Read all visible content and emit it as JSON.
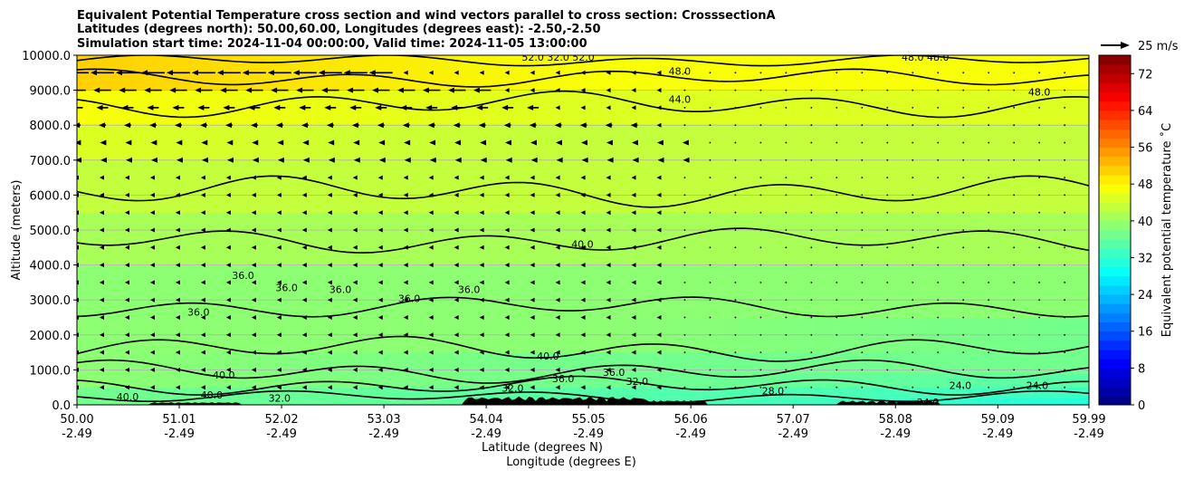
{
  "chart_data": {
    "type": "heatmap",
    "title_lines": [
      "Equivalent Potential Temperature cross section and wind vectors parallel to cross section: CrosssectionA",
      "Latitudes (degrees north): 50.00,60.00, Longitudes (degrees east): -2.50,-2.50",
      "Simulation start time: 2024-11-04 00:00:00, Valid time: 2024-11-05 13:00:00"
    ],
    "ylabel": "Altitude (meters)",
    "xlabel_lines": [
      "Latitude (degrees N)",
      "Longitude (degrees E)"
    ],
    "ylim": [
      0,
      10000
    ],
    "xlim": [
      50.0,
      59.99
    ],
    "yticks": [
      {
        "value": 0,
        "label": "0.0"
      },
      {
        "value": 1000,
        "label": "1000.0"
      },
      {
        "value": 2000,
        "label": "2000.0"
      },
      {
        "value": 3000,
        "label": "3000.0"
      },
      {
        "value": 4000,
        "label": "4000.0"
      },
      {
        "value": 5000,
        "label": "5000.0"
      },
      {
        "value": 6000,
        "label": "6000.0"
      },
      {
        "value": 7000,
        "label": "7000.0"
      },
      {
        "value": 8000,
        "label": "8000.0"
      },
      {
        "value": 9000,
        "label": "9000.0"
      },
      {
        "value": 10000,
        "label": "10000.0"
      }
    ],
    "xticks": [
      {
        "lat": 50.0,
        "lat_label": "50.00",
        "lon_label": "-2.49"
      },
      {
        "lat": 51.01,
        "lat_label": "51.01",
        "lon_label": "-2.49"
      },
      {
        "lat": 52.02,
        "lat_label": "52.02",
        "lon_label": "-2.49"
      },
      {
        "lat": 53.03,
        "lat_label": "53.03",
        "lon_label": "-2.49"
      },
      {
        "lat": 54.04,
        "lat_label": "54.04",
        "lon_label": "-2.49"
      },
      {
        "lat": 55.05,
        "lat_label": "55.05",
        "lon_label": "-2.49"
      },
      {
        "lat": 56.06,
        "lat_label": "56.06",
        "lon_label": "-2.49"
      },
      {
        "lat": 57.07,
        "lat_label": "57.07",
        "lon_label": "-2.49"
      },
      {
        "lat": 58.08,
        "lat_label": "58.08",
        "lon_label": "-2.49"
      },
      {
        "lat": 59.09,
        "lat_label": "59.09",
        "lon_label": "-2.49"
      },
      {
        "lat": 59.99,
        "lat_label": "59.99",
        "lon_label": "-2.49"
      }
    ],
    "grid_y": true,
    "colorbar": {
      "label": "Equivalent potential temperature $^\\circ$C",
      "label_text": "Equivalent potential temperature ˚C",
      "min": 0,
      "max": 76,
      "ticks": [
        0,
        8,
        16,
        24,
        32,
        40,
        48,
        56,
        64,
        72
      ],
      "colormap": "jet"
    },
    "quiver_key": {
      "label": "25 m/s",
      "speed": 25
    },
    "theta_e_bands": [
      {
        "z": 0,
        "left": 36,
        "mid": 35,
        "right": 30
      },
      {
        "z": 200,
        "left": 37,
        "mid": 35,
        "right": 32
      },
      {
        "z": 500,
        "left": 38,
        "mid": 36,
        "right": 33
      },
      {
        "z": 900,
        "left": 39,
        "mid": 37,
        "right": 35
      },
      {
        "z": 1500,
        "left": 40,
        "mid": 38,
        "right": 37
      },
      {
        "z": 2500,
        "left": 39,
        "mid": 38,
        "right": 38
      },
      {
        "z": 4000,
        "left": 40,
        "mid": 39,
        "right": 40
      },
      {
        "z": 5500,
        "left": 42,
        "mid": 41,
        "right": 42
      },
      {
        "z": 7000,
        "left": 44,
        "mid": 43,
        "right": 43
      },
      {
        "z": 8000,
        "left": 46,
        "mid": 44,
        "right": 44
      },
      {
        "z": 9000,
        "left": 48,
        "mid": 46,
        "right": 45
      },
      {
        "z": 10000,
        "left": 52,
        "mid": 49,
        "right": 47
      }
    ],
    "contour_labels": [
      {
        "text": "52.0",
        "lat": 54.5,
        "z": 9950
      },
      {
        "text": "32.0",
        "lat": 54.75,
        "z": 9950
      },
      {
        "text": "52.0",
        "lat": 55.0,
        "z": 9950
      },
      {
        "text": "48.0",
        "lat": 58.25,
        "z": 9950
      },
      {
        "text": "48.0",
        "lat": 58.5,
        "z": 9950
      },
      {
        "text": "48.0",
        "lat": 55.95,
        "z": 9550
      },
      {
        "text": "44.0",
        "lat": 55.95,
        "z": 8750
      },
      {
        "text": "48.0",
        "lat": 59.5,
        "z": 8950
      },
      {
        "text": "40.0",
        "lat": 54.99,
        "z": 4600
      },
      {
        "text": "36.0",
        "lat": 51.64,
        "z": 3700
      },
      {
        "text": "36.0",
        "lat": 52.07,
        "z": 3350
      },
      {
        "text": "36.0",
        "lat": 52.6,
        "z": 3300
      },
      {
        "text": "36.0",
        "lat": 53.28,
        "z": 3050
      },
      {
        "text": "36.0",
        "lat": 53.87,
        "z": 3300
      },
      {
        "text": "36.0",
        "lat": 51.2,
        "z": 2650
      },
      {
        "text": "40.0",
        "lat": 54.65,
        "z": 1400
      },
      {
        "text": "40.0",
        "lat": 51.45,
        "z": 850
      },
      {
        "text": "36.0",
        "lat": 54.8,
        "z": 750
      },
      {
        "text": "36.0",
        "lat": 55.3,
        "z": 930
      },
      {
        "text": "32.0",
        "lat": 55.53,
        "z": 680
      },
      {
        "text": "32.0",
        "lat": 54.3,
        "z": 480
      },
      {
        "text": "28.0",
        "lat": 56.87,
        "z": 400
      },
      {
        "text": "24.0",
        "lat": 58.72,
        "z": 560
      },
      {
        "text": "24.0",
        "lat": 59.48,
        "z": 560
      },
      {
        "text": "40.0",
        "lat": 50.5,
        "z": 230
      },
      {
        "text": "40.0",
        "lat": 51.33,
        "z": 280
      },
      {
        "text": "32.0",
        "lat": 52.0,
        "z": 190
      },
      {
        "text": "24.0",
        "lat": 58.4,
        "z": 80
      }
    ],
    "wind_arrows": [
      {
        "z": 9500,
        "lat_start": 50.0,
        "lat_end": 53.2,
        "u": -20
      },
      {
        "z": 9000,
        "lat_start": 50.0,
        "lat_end": 54.2,
        "u": -15
      },
      {
        "z": 8500,
        "lat_start": 50.0,
        "lat_end": 54.5,
        "u": -10
      },
      {
        "z": 8000,
        "lat_start": 50.0,
        "lat_end": 55.5,
        "u": -6
      },
      {
        "z": 7500,
        "lat_start": 50.0,
        "lat_end": 56.0,
        "u": -4
      },
      {
        "z": 7000,
        "lat_start": 50.0,
        "lat_end": 56.0,
        "u": -3
      }
    ]
  }
}
